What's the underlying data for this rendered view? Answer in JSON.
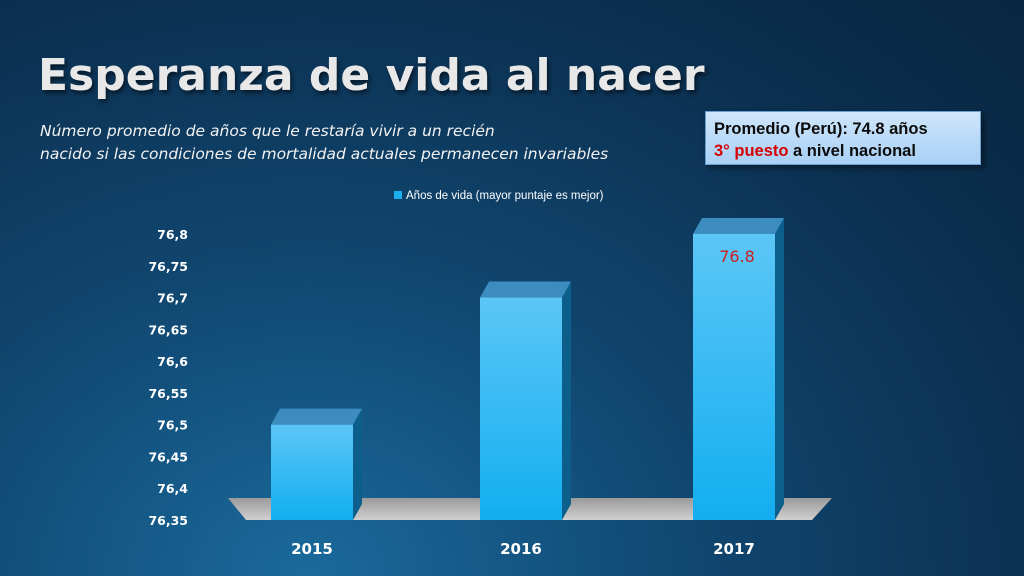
{
  "slide": {
    "title": "Esperanza de vida al nacer",
    "subtitle_line1": "Número promedio de años que le restaría vivir a un recién",
    "subtitle_line2": "nacido si las condiciones de mortalidad actuales permanecen invariables"
  },
  "info_box": {
    "line1": "Promedio (Perú): 74.8 años",
    "rank_highlight": "3° puesto",
    "rank_rest": " a nivel nacional",
    "highlight_color": "#d60000"
  },
  "chart_data": {
    "type": "bar",
    "categories": [
      "2015",
      "2016",
      "2017"
    ],
    "series": [
      {
        "name": "Años de vida (mayor puntaje es mejor)",
        "values": [
          76.5,
          76.7,
          76.8
        ],
        "color": "#1ab0f0"
      }
    ],
    "data_labels": [
      {
        "category": "2017",
        "text": "76.8",
        "color": "#cc1f1f"
      }
    ],
    "ylim": [
      76.35,
      76.8
    ],
    "yticks": [
      "76,35",
      "76,4",
      "76,45",
      "76,5",
      "76,55",
      "76,6",
      "76,65",
      "76,7",
      "76,75",
      "76,8"
    ],
    "ytick_values": [
      76.35,
      76.4,
      76.45,
      76.5,
      76.55,
      76.6,
      76.65,
      76.7,
      76.75,
      76.8
    ],
    "grid": false,
    "legend_position": "top-center",
    "style": "3d-column"
  }
}
